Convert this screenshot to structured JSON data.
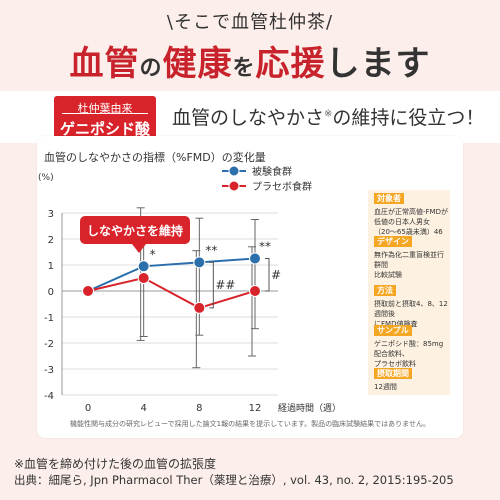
{
  "pre_title": "\\そこで血管杜仲茶/",
  "main_title": {
    "part1": "血管",
    "part2": "の",
    "part3": "健康",
    "part4": "を",
    "part5": "応援",
    "part6": "します"
  },
  "badge": {
    "top": "杜仲葉由来",
    "main": "ゲニポシド酸"
  },
  "headline": {
    "text": "血管のしなやかさ",
    "mark": "※",
    "text2": "の維持に役立つ！"
  },
  "chart_title": "血管のしなやかさの指標（%FMD）の変化量",
  "annotation": "しなやかさを維持",
  "footnote": "機能性関与成分の研究レビューで採用した論文1報の結果を提示しています。製品の臨床試験結果ではありません。",
  "reference": {
    "line1": "※血管を締め付けた後の血管の拡張度",
    "line2": "出典：細尾ら, Jpn Pharmacol Ther（薬理と治療）, vol. 43, no. 2, 2015:195-205"
  },
  "info": [
    {
      "heading": "対象者",
      "text": "血圧が正常高値-FMDが\n低値の日本人男女\n（20～65歳未満）46名"
    },
    {
      "heading": "デザイン",
      "text": "無作為化二重盲検並行群間\n比較試験"
    },
    {
      "heading": "方法",
      "text": "摂取前と摂取4、8、12週間後\nにFMD値検査"
    },
    {
      "heading": "サンプル",
      "text": "ゲニポシド酸：85mg配合飲料、\nプラセボ飲料"
    },
    {
      "heading": "摂取期間",
      "text": "12週間"
    }
  ],
  "colors": {
    "accent": "#c8232c",
    "test_group": "#2c6fad",
    "placebo": "#d8232a",
    "info_heading": "#f5a623"
  },
  "chart_data": {
    "type": "line",
    "title": "血管のしなやかさの指標（%FMD）の変化量",
    "ylabel": "(%)",
    "xlabel": "経過時間（週）",
    "x": [
      0,
      4,
      8,
      12
    ],
    "ylim": [
      -4,
      3
    ],
    "yticks": [
      3,
      2,
      1,
      0,
      -1,
      -2,
      -3,
      -4
    ],
    "legend_position": "top-right",
    "series": [
      {
        "name": "被験食群",
        "color": "#2c6fad",
        "values": [
          0,
          0.95,
          1.1,
          1.25
        ],
        "err_plus": [
          0,
          0.9,
          1.7,
          1.5
        ],
        "err_minus": [
          0,
          2.7,
          2.8,
          2.7
        ]
      },
      {
        "name": "プラセボ食群",
        "color": "#d8232a",
        "values": [
          0,
          0.5,
          -0.65,
          0.0
        ],
        "err_plus": [
          0,
          2.7,
          2.2,
          1.7
        ],
        "err_minus": [
          0,
          2.4,
          2.3,
          2.5
        ]
      }
    ],
    "significance": [
      {
        "x": 4,
        "label": "*"
      },
      {
        "x": 8,
        "label": "**"
      },
      {
        "x": 12,
        "label": "**"
      },
      {
        "x": 8,
        "label": "##"
      },
      {
        "x": 12,
        "label": "#"
      }
    ]
  }
}
